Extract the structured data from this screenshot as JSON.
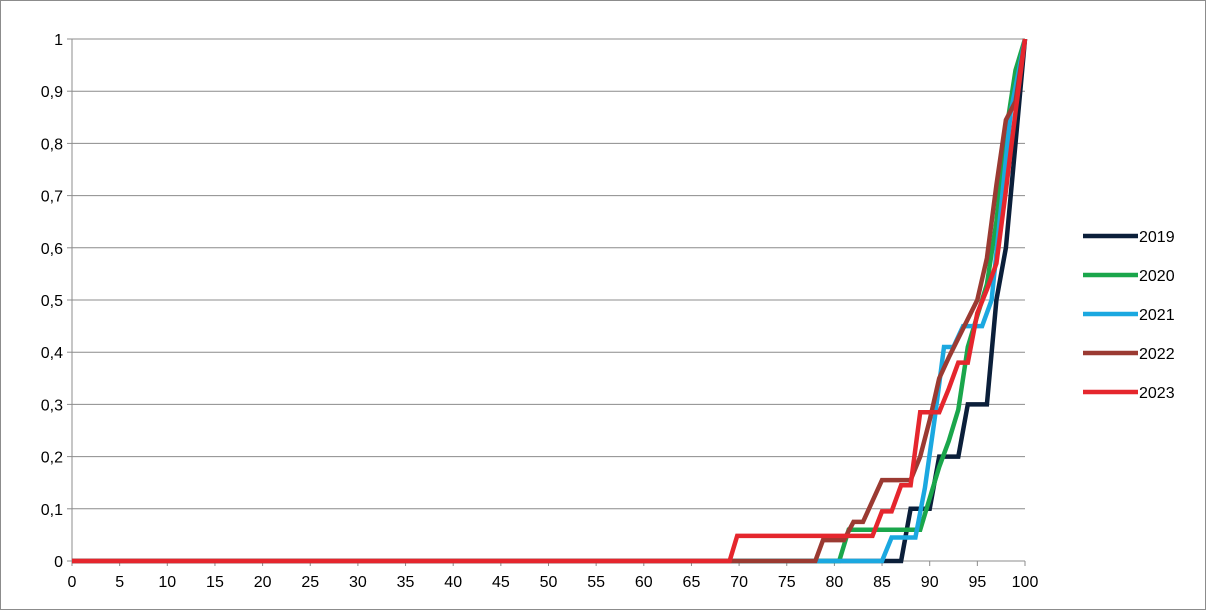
{
  "chart_data": {
    "type": "line",
    "title": "",
    "xlabel": "",
    "ylabel": "",
    "xlim": [
      0,
      100
    ],
    "ylim": [
      0,
      1
    ],
    "x_ticks": [
      "0",
      "5",
      "10",
      "15",
      "20",
      "25",
      "30",
      "35",
      "40",
      "45",
      "50",
      "55",
      "60",
      "65",
      "70",
      "75",
      "80",
      "85",
      "90",
      "95",
      "100"
    ],
    "y_ticks": [
      "0",
      "0,1",
      "0,2",
      "0,3",
      "0,4",
      "0,5",
      "0,6",
      "0,7",
      "0,8",
      "0,9",
      "1"
    ],
    "grid": "horizontal",
    "legend_position": "right",
    "series": [
      {
        "name": "2019",
        "color": "#0b1f3a",
        "points": [
          [
            0,
            0
          ],
          [
            86,
            0
          ],
          [
            87,
            0
          ],
          [
            88,
            0.1
          ],
          [
            89,
            0.1
          ],
          [
            90,
            0.1
          ],
          [
            91,
            0.2
          ],
          [
            92,
            0.2
          ],
          [
            93,
            0.2
          ],
          [
            94,
            0.3
          ],
          [
            95,
            0.3
          ],
          [
            96,
            0.3
          ],
          [
            97,
            0.5
          ],
          [
            98,
            0.6
          ],
          [
            99,
            0.8
          ],
          [
            100,
            1
          ]
        ]
      },
      {
        "name": "2020",
        "color": "#1aa64b",
        "points": [
          [
            0,
            0
          ],
          [
            80.5,
            0
          ],
          [
            81.5,
            0.06
          ],
          [
            89,
            0.06
          ],
          [
            90,
            0.12
          ],
          [
            91,
            0.18
          ],
          [
            92,
            0.23
          ],
          [
            93,
            0.29
          ],
          [
            94,
            0.41
          ],
          [
            95,
            0.47
          ],
          [
            96,
            0.53
          ],
          [
            97,
            0.65
          ],
          [
            98,
            0.82
          ],
          [
            99,
            0.94
          ],
          [
            100,
            1
          ]
        ]
      },
      {
        "name": "2021",
        "color": "#1ba8e0",
        "points": [
          [
            0,
            0
          ],
          [
            85,
            0
          ],
          [
            86,
            0.045
          ],
          [
            88.5,
            0.045
          ],
          [
            89.5,
            0.14
          ],
          [
            90.5,
            0.27
          ],
          [
            91.5,
            0.41
          ],
          [
            92.5,
            0.41
          ],
          [
            93.5,
            0.45
          ],
          [
            94.5,
            0.45
          ],
          [
            95.5,
            0.45
          ],
          [
            96.5,
            0.5
          ],
          [
            97.5,
            0.68
          ],
          [
            98.5,
            0.86
          ],
          [
            100,
            1
          ]
        ]
      },
      {
        "name": "2022",
        "color": "#9b3a32",
        "points": [
          [
            0,
            0
          ],
          [
            78,
            0
          ],
          [
            78.8,
            0.04
          ],
          [
            81,
            0.04
          ],
          [
            82,
            0.075
          ],
          [
            83,
            0.075
          ],
          [
            85,
            0.155
          ],
          [
            88,
            0.155
          ],
          [
            89,
            0.2
          ],
          [
            90,
            0.27
          ],
          [
            91,
            0.35
          ],
          [
            92,
            0.39
          ],
          [
            95,
            0.5
          ],
          [
            96,
            0.58
          ],
          [
            97,
            0.72
          ],
          [
            98,
            0.845
          ],
          [
            99,
            0.88
          ],
          [
            100,
            1
          ]
        ]
      },
      {
        "name": "2023",
        "color": "#e5262d",
        "points": [
          [
            0,
            0
          ],
          [
            69,
            0
          ],
          [
            69.8,
            0.048
          ],
          [
            84,
            0.048
          ],
          [
            85,
            0.095
          ],
          [
            86,
            0.095
          ],
          [
            87,
            0.145
          ],
          [
            88,
            0.145
          ],
          [
            89,
            0.285
          ],
          [
            90,
            0.285
          ],
          [
            91,
            0.285
          ],
          [
            92,
            0.33
          ],
          [
            93,
            0.38
          ],
          [
            94,
            0.38
          ],
          [
            95,
            0.475
          ],
          [
            96,
            0.52
          ],
          [
            97,
            0.57
          ],
          [
            98,
            0.71
          ],
          [
            99,
            0.86
          ],
          [
            100,
            1
          ]
        ]
      }
    ]
  }
}
